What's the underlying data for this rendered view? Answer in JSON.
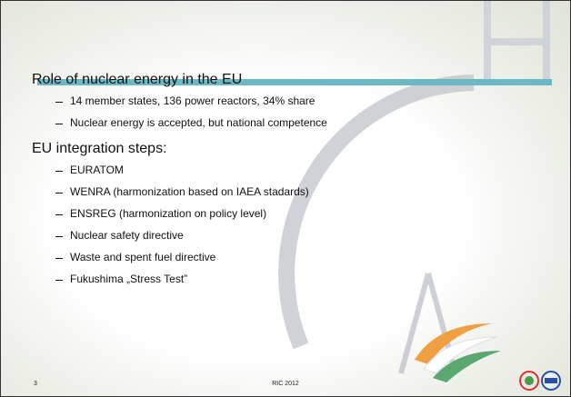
{
  "sections": [
    {
      "heading": "Role of nuclear energy in the EU",
      "items": [
        "14 member states, 136 power reactors, 34% share",
        "Nuclear energy is accepted, but national competence"
      ]
    },
    {
      "heading": "EU integration steps:",
      "items": [
        "EURATOM",
        "WENRA (harmonization based on IAEA stadards)",
        "ENSREG (harmonization on policy level)",
        "Nuclear safety directive",
        "Waste and spent fuel directive",
        "Fukushima „Stress Test”"
      ]
    }
  ],
  "footer": {
    "page": "3",
    "text": "RIC 2012"
  }
}
